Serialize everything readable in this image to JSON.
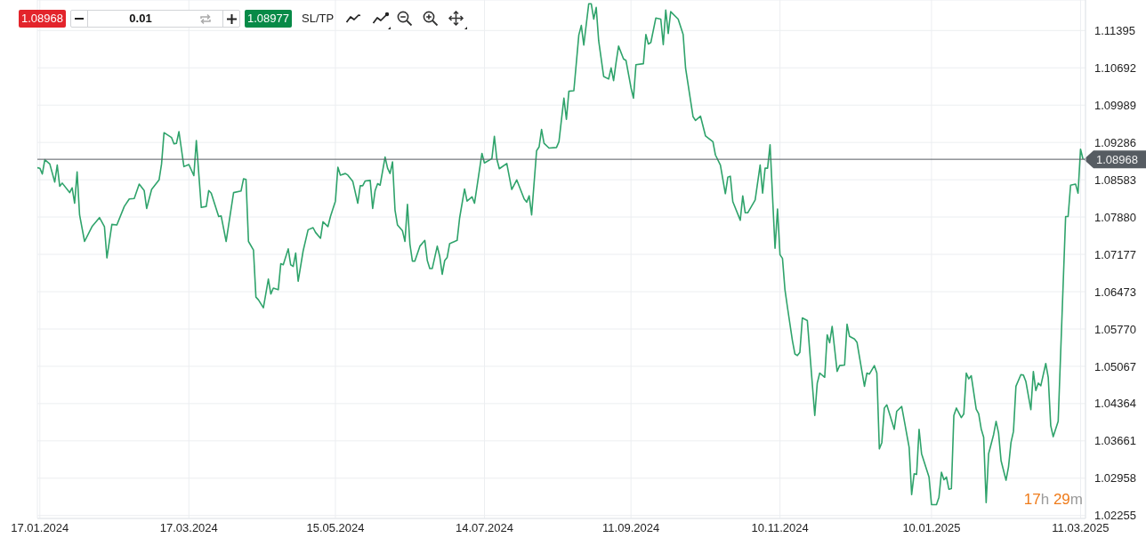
{
  "chart_data": {
    "type": "line",
    "x": [
      "2024-01-16",
      "2024-01-17",
      "2024-01-18",
      "2024-01-19",
      "2024-01-21",
      "2024-01-23",
      "2024-01-24",
      "2024-01-25",
      "2024-01-26",
      "2024-01-29",
      "2024-01-30",
      "2024-01-31",
      "2024-02-01",
      "2024-02-02",
      "2024-02-04",
      "2024-02-07",
      "2024-02-10",
      "2024-02-12",
      "2024-02-13",
      "2024-02-15",
      "2024-02-17",
      "2024-02-20",
      "2024-02-22",
      "2024-02-24",
      "2024-02-26",
      "2024-02-28",
      "2024-02-29",
      "2024-03-02",
      "2024-03-05",
      "2024-03-06",
      "2024-03-07",
      "2024-03-10",
      "2024-03-11",
      "2024-03-12",
      "2024-03-13",
      "2024-03-15",
      "2024-03-17",
      "2024-03-19",
      "2024-03-20",
      "2024-03-22",
      "2024-03-24",
      "2024-03-25",
      "2024-03-26",
      "2024-03-29",
      "2024-03-30",
      "2024-04-01",
      "2024-04-04",
      "2024-04-07",
      "2024-04-08",
      "2024-04-09",
      "2024-04-10",
      "2024-04-12",
      "2024-04-13",
      "2024-04-14",
      "2024-04-16",
      "2024-04-18",
      "2024-04-19",
      "2024-04-20",
      "2024-04-22",
      "2024-04-23",
      "2024-04-24",
      "2024-04-26",
      "2024-04-27",
      "2024-04-28",
      "2024-04-29",
      "2024-04-30",
      "2024-05-02",
      "2024-05-04",
      "2024-05-06",
      "2024-05-07",
      "2024-05-09",
      "2024-05-10",
      "2024-05-12",
      "2024-05-13",
      "2024-05-15",
      "2024-05-16",
      "2024-05-17",
      "2024-05-19",
      "2024-05-20",
      "2024-05-22",
      "2024-05-24",
      "2024-05-25",
      "2024-05-26",
      "2024-05-27",
      "2024-05-29",
      "2024-05-30",
      "2024-05-31",
      "2024-06-01",
      "2024-06-02",
      "2024-06-04",
      "2024-06-05",
      "2024-06-06",
      "2024-06-07",
      "2024-06-08",
      "2024-06-09",
      "2024-06-11",
      "2024-06-12",
      "2024-06-13",
      "2024-06-14",
      "2024-06-15",
      "2024-06-16",
      "2024-06-18",
      "2024-06-20",
      "2024-06-21",
      "2024-06-22",
      "2024-06-23",
      "2024-06-25",
      "2024-06-26",
      "2024-06-27",
      "2024-06-28",
      "2024-06-29",
      "2024-06-30",
      "2024-07-03",
      "2024-07-04",
      "2024-07-06",
      "2024-07-07",
      "2024-07-09",
      "2024-07-10",
      "2024-07-13",
      "2024-07-14",
      "2024-07-17",
      "2024-07-18",
      "2024-07-19",
      "2024-07-20",
      "2024-07-23",
      "2024-07-25",
      "2024-07-27",
      "2024-07-30",
      "2024-07-31",
      "2024-08-01",
      "2024-08-02",
      "2024-08-04",
      "2024-08-05",
      "2024-08-06",
      "2024-08-07",
      "2024-08-09",
      "2024-08-12",
      "2024-08-13",
      "2024-08-14",
      "2024-08-15",
      "2024-08-16",
      "2024-08-17",
      "2024-08-19",
      "2024-08-21",
      "2024-08-22",
      "2024-08-23",
      "2024-08-25",
      "2024-08-26",
      "2024-08-27",
      "2024-08-28",
      "2024-08-29",
      "2024-08-31",
      "2024-09-02",
      "2024-09-03",
      "2024-09-04",
      "2024-09-05",
      "2024-09-06",
      "2024-09-08",
      "2024-09-09",
      "2024-09-11",
      "2024-09-12",
      "2024-09-13",
      "2024-09-16",
      "2024-09-17",
      "2024-09-18",
      "2024-09-19",
      "2024-09-21",
      "2024-09-23",
      "2024-09-24",
      "2024-09-25",
      "2024-09-26",
      "2024-09-27",
      "2024-09-30",
      "2024-10-02",
      "2024-10-03",
      "2024-10-06",
      "2024-10-07",
      "2024-10-09",
      "2024-10-11",
      "2024-10-14",
      "2024-10-15",
      "2024-10-17",
      "2024-10-19",
      "2024-10-20",
      "2024-10-21",
      "2024-10-22",
      "2024-10-25",
      "2024-10-26",
      "2024-10-27",
      "2024-10-28",
      "2024-10-31",
      "2024-11-02",
      "2024-11-03",
      "2024-11-04",
      "2024-11-05",
      "2024-11-06",
      "2024-11-08",
      "2024-11-09",
      "2024-11-10",
      "2024-11-11",
      "2024-11-12",
      "2024-11-13",
      "2024-11-15",
      "2024-11-16",
      "2024-11-17",
      "2024-11-18",
      "2024-11-19",
      "2024-11-21",
      "2024-11-24",
      "2024-11-25",
      "2024-11-26",
      "2024-11-28",
      "2024-11-29",
      "2024-11-30",
      "2024-12-01",
      "2024-12-03",
      "2024-12-04",
      "2024-12-06",
      "2024-12-07",
      "2024-12-08",
      "2024-12-10",
      "2024-12-11",
      "2024-12-14",
      "2024-12-15",
      "2024-12-16",
      "2024-12-18",
      "2024-12-19",
      "2024-12-20",
      "2024-12-21",
      "2024-12-22",
      "2024-12-23",
      "2024-12-26",
      "2024-12-27",
      "2024-12-29",
      "2025-01-01",
      "2025-01-02",
      "2025-01-03",
      "2025-01-04",
      "2025-01-05",
      "2025-01-06",
      "2025-01-09",
      "2025-01-10",
      "2025-01-12",
      "2025-01-13",
      "2025-01-14",
      "2025-01-15",
      "2025-01-16",
      "2025-01-17",
      "2025-01-18",
      "2025-01-19",
      "2025-01-20",
      "2025-01-22",
      "2025-01-23",
      "2025-01-24",
      "2025-01-25",
      "2025-01-26",
      "2025-01-28",
      "2025-01-29",
      "2025-01-30",
      "2025-01-31",
      "2025-02-01",
      "2025-02-02",
      "2025-02-04",
      "2025-02-05",
      "2025-02-06",
      "2025-02-07",
      "2025-02-09",
      "2025-02-10",
      "2025-02-11",
      "2025-02-12",
      "2025-02-13",
      "2025-02-15",
      "2025-02-16",
      "2025-02-17",
      "2025-02-19",
      "2025-02-20",
      "2025-02-21",
      "2025-02-22",
      "2025-02-23",
      "2025-02-25",
      "2025-02-26",
      "2025-02-27",
      "2025-02-28",
      "2025-03-02",
      "2025-03-05",
      "2025-03-06",
      "2025-03-07",
      "2025-03-09",
      "2025-03-10",
      "2025-03-11",
      "2025-03-12"
    ],
    "values": [
      1.0881,
      1.088,
      1.0869,
      1.0896,
      1.0888,
      1.0854,
      1.0886,
      1.0846,
      1.0852,
      1.0834,
      1.0843,
      1.0814,
      1.0873,
      1.0792,
      1.0742,
      1.077,
      1.0787,
      1.077,
      1.0711,
      1.0774,
      1.0773,
      1.0808,
      1.0822,
      1.0823,
      1.085,
      1.0838,
      1.0804,
      1.084,
      1.0858,
      1.0888,
      1.0947,
      1.0938,
      1.0926,
      1.0927,
      1.0949,
      1.0883,
      1.0887,
      1.0866,
      1.0932,
      1.0806,
      1.0808,
      1.0838,
      1.0833,
      1.0789,
      1.079,
      1.0742,
      1.0834,
      1.0837,
      1.086,
      1.0859,
      1.0742,
      1.0726,
      1.0637,
      1.0632,
      1.0617,
      1.0671,
      1.0643,
      1.0654,
      1.0651,
      1.07,
      1.0698,
      1.0728,
      1.0698,
      1.0695,
      1.072,
      1.0667,
      1.0724,
      1.0764,
      1.0768,
      1.0759,
      1.0748,
      1.0779,
      1.077,
      1.0789,
      1.0818,
      1.0882,
      1.0867,
      1.087,
      1.0867,
      1.0855,
      1.0814,
      1.0847,
      1.0847,
      1.0856,
      1.0857,
      1.0804,
      1.0838,
      1.0851,
      1.0848,
      1.0901,
      1.088,
      1.087,
      1.0892,
      1.0801,
      1.0773,
      1.0762,
      1.0742,
      1.0812,
      1.0737,
      1.0705,
      1.0705,
      1.0733,
      1.0744,
      1.0706,
      1.0691,
      1.0691,
      1.0733,
      1.0714,
      1.068,
      1.0706,
      1.0712,
      1.0738,
      1.0744,
      1.0786,
      1.0841,
      1.0818,
      1.0826,
      1.0814,
      1.0908,
      1.089,
      1.0898,
      1.094,
      1.0897,
      1.0879,
      1.0889,
      1.084,
      1.0858,
      1.0822,
      1.0816,
      1.0828,
      1.0792,
      1.0913,
      1.092,
      1.0953,
      1.0927,
      1.0918,
      1.0919,
      1.093,
      1.0971,
      1.1012,
      1.0972,
      1.1025,
      1.1026,
      1.1131,
      1.1149,
      1.1112,
      1.119,
      1.119,
      1.1161,
      1.1183,
      1.112,
      1.1053,
      1.1048,
      1.1069,
      1.1045,
      1.1079,
      1.111,
      1.1086,
      1.1083,
      1.1032,
      1.1012,
      1.1075,
      1.1077,
      1.1132,
      1.1114,
      1.1117,
      1.1163,
      1.1161,
      1.1113,
      1.1178,
      1.1134,
      1.1175,
      1.1161,
      1.1132,
      1.1068,
      1.0977,
      1.097,
      1.0978,
      1.0941,
      1.093,
      1.0905,
      1.0886,
      1.0832,
      1.0863,
      1.0865,
      1.0817,
      1.0782,
      1.0828,
      1.0796,
      1.0796,
      1.082,
      1.0886,
      1.0833,
      1.088,
      1.088,
      1.0924,
      1.0729,
      1.0803,
      1.0717,
      1.071,
      1.0651,
      1.0618,
      1.0555,
      1.053,
      1.0527,
      1.0533,
      1.0598,
      1.0593,
      1.0414,
      1.0475,
      1.0494,
      1.0486,
      1.0566,
      1.0551,
      1.0582,
      1.0497,
      1.0508,
      1.0509,
      1.0586,
      1.0563,
      1.0558,
      1.0552,
      1.0469,
      1.0494,
      1.0492,
      1.0508,
      1.0494,
      1.0351,
      1.0363,
      1.0428,
      1.0434,
      1.0388,
      1.0422,
      1.0431,
      1.0354,
      1.0265,
      1.0304,
      1.0303,
      1.0388,
      1.0342,
      1.0298,
      1.0246,
      1.0246,
      1.026,
      1.0307,
      1.0293,
      1.0298,
      1.0275,
      1.0276,
      1.0414,
      1.0428,
      1.041,
      1.0417,
      1.0494,
      1.0483,
      1.0489,
      1.0426,
      1.0417,
      1.0389,
      1.0373,
      1.025,
      1.0342,
      1.0378,
      1.0403,
      1.0381,
      1.0329,
      1.0292,
      1.0317,
      1.0363,
      1.0384,
      1.0469,
      1.0491,
      1.049,
      1.0478,
      1.0425,
      1.0497,
      1.0461,
      1.0475,
      1.047,
      1.0512,
      1.0486,
      1.0395,
      1.0374,
      1.0403,
      1.0789,
      1.0789,
      1.0848,
      1.085,
      1.0833,
      1.0916,
      1.0897
    ],
    "color": "#2fa36b",
    "xlim": [
      "2024-01-16",
      "2025-03-13"
    ],
    "xticks": [
      {
        "value": "2024-01-17",
        "label": "17.01.2024"
      },
      {
        "value": "2024-03-17",
        "label": "17.03.2024"
      },
      {
        "value": "2024-05-15",
        "label": "15.05.2024"
      },
      {
        "value": "2024-07-14",
        "label": "14.07.2024"
      },
      {
        "value": "2024-09-11",
        "label": "11.09.2024"
      },
      {
        "value": "2024-11-10",
        "label": "10.11.2024"
      },
      {
        "value": "2025-01-10",
        "label": "10.01.2025"
      },
      {
        "value": "2025-03-11",
        "label": "11.03.2025"
      }
    ],
    "ylim": [
      1.022,
      1.1197
    ],
    "yticks": [
      1.02255,
      1.02958,
      1.03661,
      1.04364,
      1.05067,
      {
        "value": 1.0577,
        "label": "1.05770"
      },
      1.06473,
      1.07177,
      {
        "value": 1.0788,
        "label": "1.07880"
      },
      1.08583,
      1.09286,
      1.09989,
      1.10692,
      1.11395
    ],
    "grid": true,
    "ref_lines": [
      {
        "axis": "y",
        "value": 1.08968,
        "label": "1.08968",
        "color": "#565c62"
      }
    ],
    "annotations": [
      "1.08968",
      "0.01",
      "1.08977",
      "SL/TP",
      "17h 29m"
    ]
  }
}
